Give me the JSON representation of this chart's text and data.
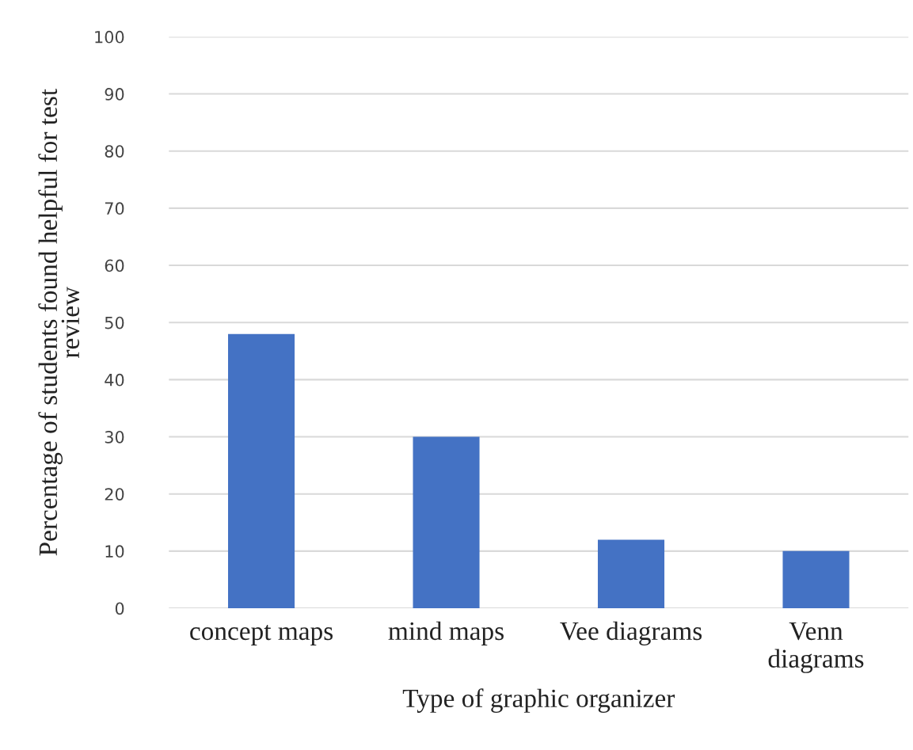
{
  "chart_data": {
    "type": "bar",
    "xlabel": "Type of graphic organizer",
    "ylabel": "Percentage of students found helpful for test\nreview",
    "categories": [
      "concept maps",
      "mind maps",
      "Vee diagrams",
      "Venn\ndiagrams"
    ],
    "values": [
      48,
      30,
      12,
      10
    ],
    "color": "#4472c4",
    "ylim": [
      0,
      100
    ],
    "yticks": [
      0,
      10,
      20,
      30,
      40,
      50,
      60,
      70,
      80,
      90,
      100
    ],
    "grid": "y"
  }
}
